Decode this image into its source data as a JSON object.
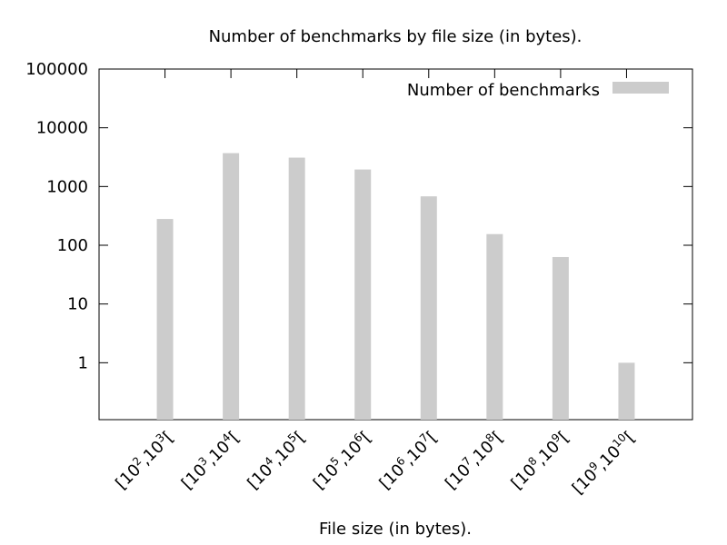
{
  "chart_data": {
    "type": "bar",
    "title": "Number of benchmarks by file size (in bytes).",
    "xlabel": "File size (in bytes).",
    "ylabel": "",
    "yscale": "log",
    "ylim": [
      0.1,
      100000
    ],
    "y_ticks": [
      "1",
      "10",
      "100",
      "1000",
      "10000",
      "100000"
    ],
    "grid": false,
    "legend_position": "top-right",
    "categories": [
      {
        "label": "[10^2,10^3[",
        "a": "2",
        "b": "3"
      },
      {
        "label": "[10^3,10^4[",
        "a": "3",
        "b": "4"
      },
      {
        "label": "[10^4,10^5[",
        "a": "4",
        "b": "5"
      },
      {
        "label": "[10^5,10^6[",
        "a": "5",
        "b": "6"
      },
      {
        "label": "[10^6,10^7[",
        "a": "6",
        "b": "7"
      },
      {
        "label": "[10^7,10^8[",
        "a": "7",
        "b": "8"
      },
      {
        "label": "[10^8,10^9[",
        "a": "8",
        "b": "9"
      },
      {
        "label": "[10^9,10^10[",
        "a": "9",
        "b": "10"
      }
    ],
    "series": [
      {
        "name": "Number of benchmarks",
        "color": "#cccccc",
        "values": [
          280,
          3700,
          3100,
          1950,
          680,
          155,
          63,
          1
        ]
      }
    ]
  }
}
